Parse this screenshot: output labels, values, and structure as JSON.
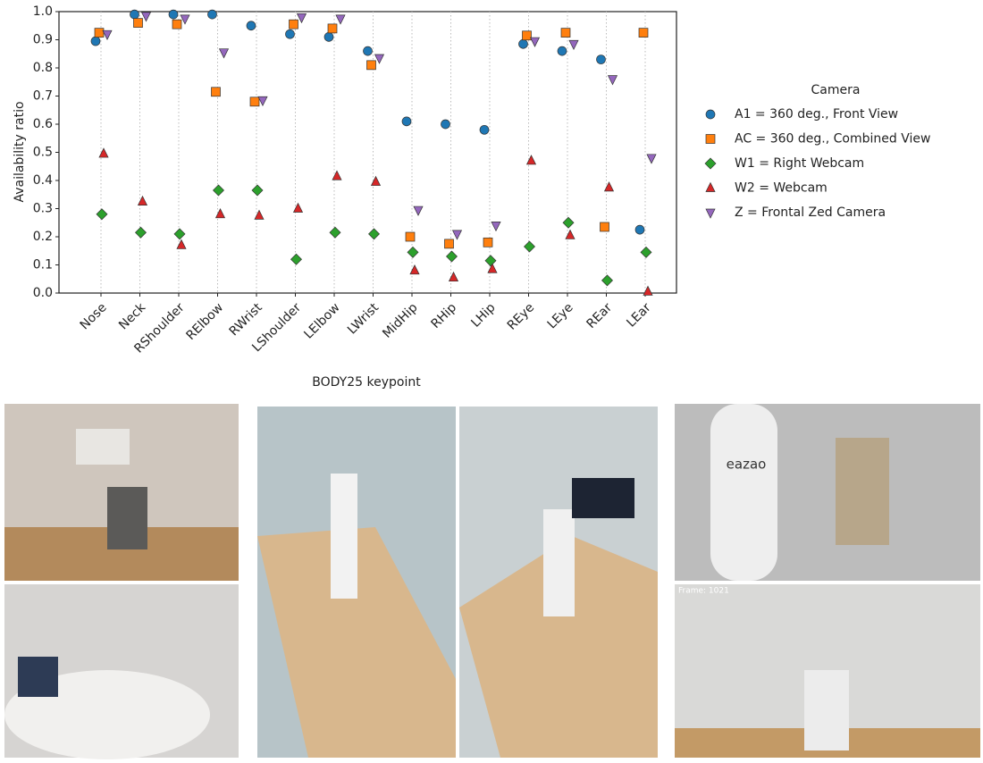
{
  "chart_data": {
    "type": "scatter",
    "xlabel": "BODY25 keypoint",
    "ylabel": "Availability ratio",
    "legend_title": "Camera",
    "legend": "right",
    "grid": "x-dotted",
    "categories": [
      "Nose",
      "Neck",
      "RShoulder",
      "RElbow",
      "RWrist",
      "LShoulder",
      "LElbow",
      "LWrist",
      "MidHip",
      "RHip",
      "LHip",
      "REye",
      "LEye",
      "REar",
      "LEar"
    ],
    "ylim": [
      0,
      1
    ],
    "yticks": [
      {
        "value": 0,
        "label": "0.0"
      },
      {
        "value": 0.1,
        "label": "0.1"
      },
      {
        "value": 0.2,
        "label": "0.2"
      },
      {
        "value": 0.3,
        "label": "0.3"
      },
      {
        "value": 0.4,
        "label": "0.4"
      },
      {
        "value": 0.5,
        "label": "0.5"
      },
      {
        "value": 0.6,
        "label": "0.6"
      },
      {
        "value": 0.7,
        "label": "0.7"
      },
      {
        "value": 0.8,
        "label": "0.8"
      },
      {
        "value": 0.9,
        "label": "0.9"
      },
      {
        "value": 1,
        "label": "1.0"
      }
    ],
    "series": [
      {
        "name": "A1 = 360 deg., Front View",
        "color": "#1f77b4",
        "marker": "circle",
        "values": [
          0.895,
          0.99,
          0.99,
          0.99,
          0.95,
          0.92,
          0.91,
          0.86,
          0.61,
          0.6,
          0.58,
          0.885,
          0.86,
          0.83,
          0.225
        ]
      },
      {
        "name": "AC = 360 deg., Combined View",
        "color": "#ff7f0e",
        "marker": "square",
        "values": [
          0.925,
          0.96,
          0.955,
          0.715,
          0.68,
          0.955,
          0.94,
          0.81,
          0.2,
          0.175,
          0.18,
          0.915,
          0.925,
          0.235,
          0.925
        ]
      },
      {
        "name": "W1 = Right Webcam",
        "color": "#2ca02c",
        "marker": "diamond",
        "values": [
          0.28,
          0.215,
          0.21,
          0.365,
          0.365,
          0.12,
          0.215,
          0.21,
          0.145,
          0.13,
          0.115,
          0.165,
          0.25,
          0.045,
          0.145
        ]
      },
      {
        "name": "W2 = Webcam",
        "color": "#d62728",
        "marker": "triangle-up",
        "values": [
          0.495,
          0.325,
          0.17,
          0.28,
          0.275,
          0.3,
          0.415,
          0.395,
          0.08,
          0.055,
          0.085,
          0.47,
          0.205,
          0.375,
          0.005
        ]
      },
      {
        "name": "Z = Frontal Zed Camera",
        "color": "#9467bd",
        "marker": "triangle-down",
        "values": [
          0.92,
          0.985,
          0.975,
          0.855,
          0.685,
          0.98,
          0.975,
          0.835,
          0.295,
          0.21,
          0.24,
          0.895,
          0.885,
          0.76,
          0.48
        ]
      }
    ]
  },
  "photo_texts": [
    "eazao",
    "Frame: 1021"
  ]
}
